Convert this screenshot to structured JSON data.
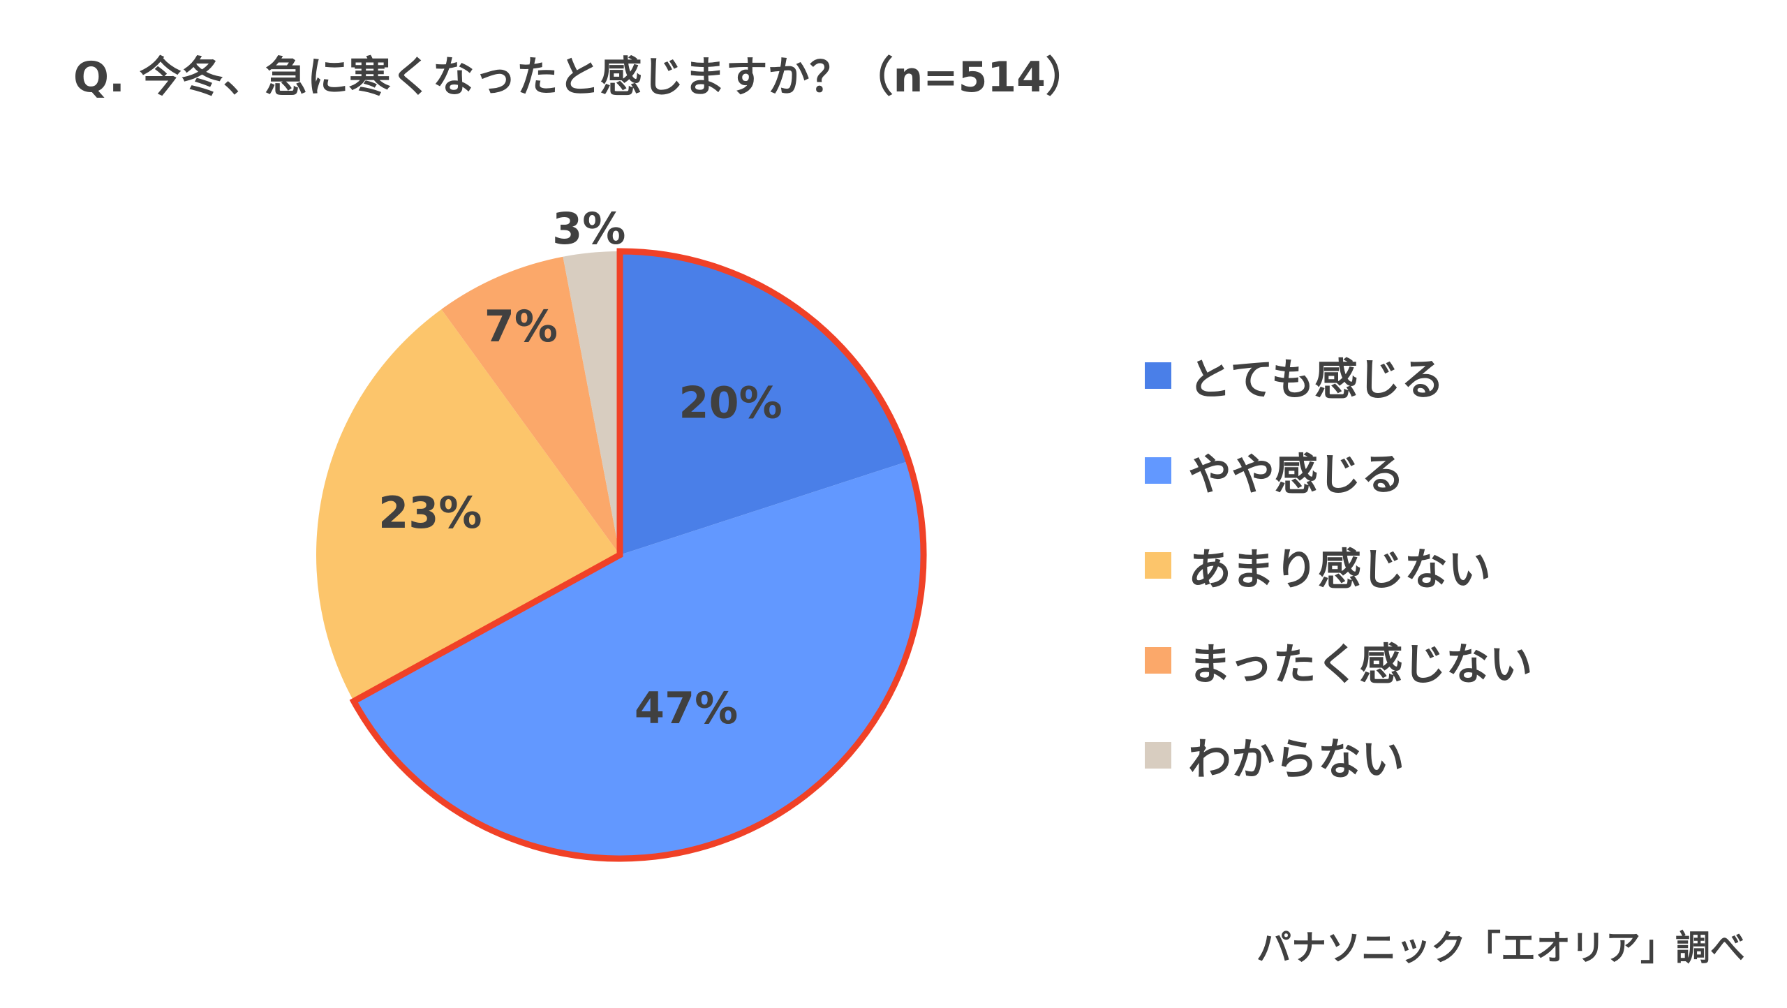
{
  "title": "Q. 今冬、急に寒くなったと感じますか？（n=514）",
  "source": "パナソニック「エオリア」調べ",
  "chart_data": {
    "type": "pie",
    "title": "Q. 今冬、急に寒くなったと感じますか？（n=514）",
    "categories": [
      "とても感じる",
      "やや感じる",
      "あまり感じない",
      "まったく感じない",
      "わからない"
    ],
    "values": [
      20,
      47,
      23,
      7,
      3
    ],
    "value_labels": [
      "20%",
      "47%",
      "23%",
      "7%",
      "3%"
    ],
    "colors": [
      "#4a7fe8",
      "#6298ff",
      "#fcc56b",
      "#fba86a",
      "#d8cdc0"
    ],
    "highlight": {
      "slices": [
        "とても感じる",
        "やや感じる"
      ],
      "outline_color": "#f04127"
    },
    "legend_position": "right",
    "start_angle": "12 o'clock",
    "direction": "clockwise"
  }
}
